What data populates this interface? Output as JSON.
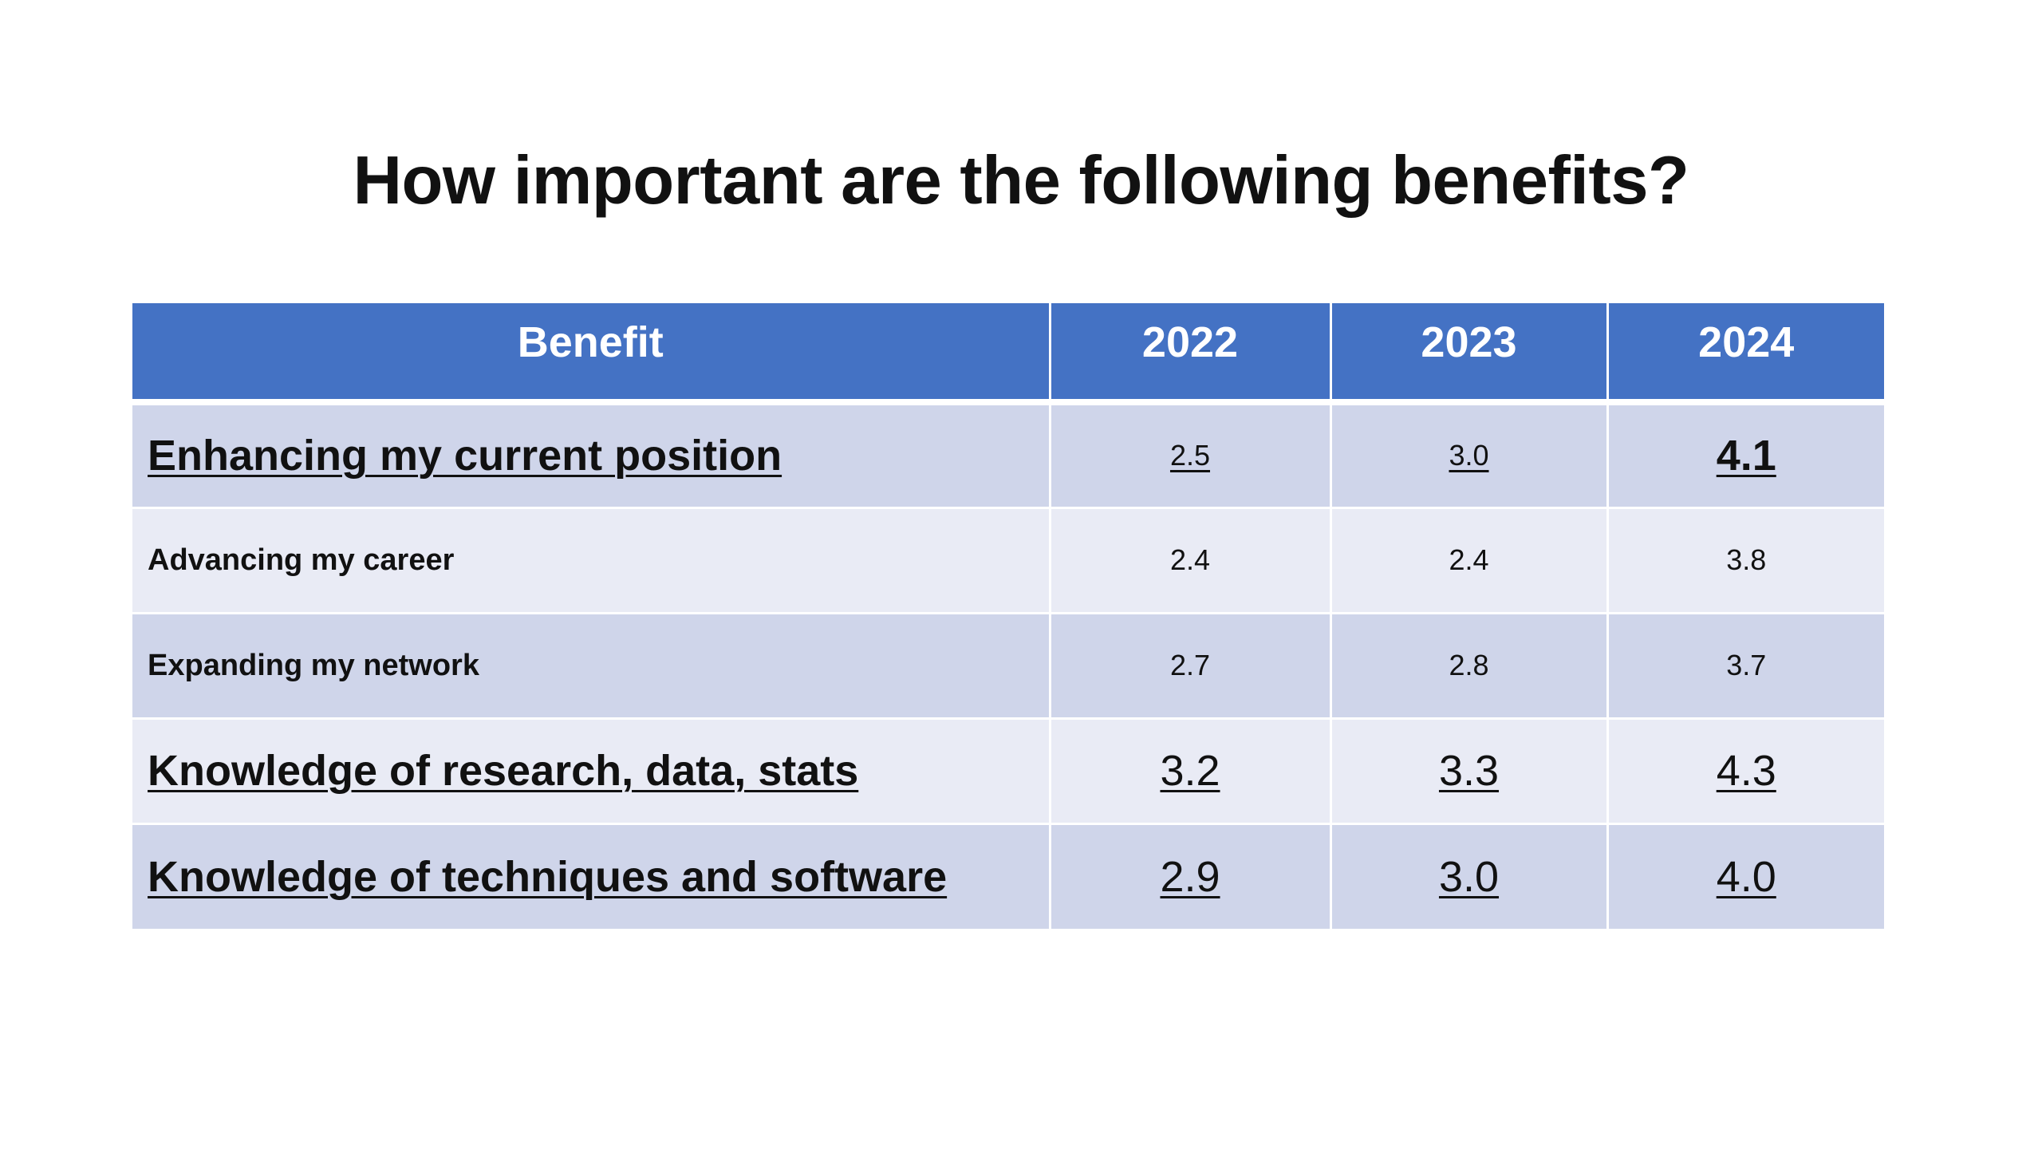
{
  "chart_data": {
    "type": "table",
    "title": "How important are the following benefits?",
    "columns": [
      "Benefit",
      "2022",
      "2023",
      "2024"
    ],
    "rows": [
      {
        "benefit": "Enhancing my current position",
        "values": [
          "2.5",
          "3.0",
          "4.1"
        ]
      },
      {
        "benefit": "Advancing my career",
        "values": [
          "2.4",
          "2.4",
          "3.8"
        ]
      },
      {
        "benefit": "Expanding my network",
        "values": [
          "2.7",
          "2.8",
          "3.7"
        ]
      },
      {
        "benefit": "Knowledge of research, data, stats",
        "values": [
          "3.2",
          "3.3",
          "4.3"
        ]
      },
      {
        "benefit": "Knowledge of techniques and software",
        "values": [
          "2.9",
          "3.0",
          "4.0"
        ]
      }
    ],
    "header_color": "#4472c4",
    "row_colors": [
      "#cfd5ea",
      "#e9ebf5"
    ]
  }
}
